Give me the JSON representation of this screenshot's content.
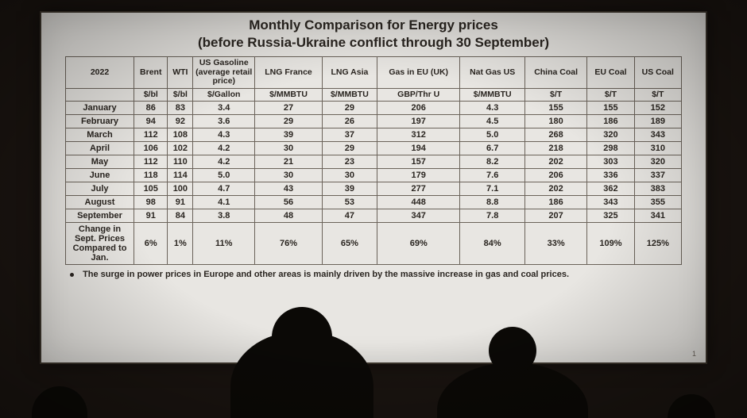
{
  "title_line1": "Monthly Comparison for Energy prices",
  "title_line2": "(before Russia-Ukraine conflict through 30 September)",
  "year_label": "2022",
  "columns": [
    {
      "name": "Brent",
      "unit": "$/bl"
    },
    {
      "name": "WTI",
      "unit": "$/bl"
    },
    {
      "name": "US Gasoline (average retail price)",
      "unit": "$/Gallon"
    },
    {
      "name": "LNG France",
      "unit": "$/MMBTU"
    },
    {
      "name": "LNG Asia",
      "unit": "$/MMBTU"
    },
    {
      "name": "Gas in EU (UK)",
      "unit": "GBP/Thr U"
    },
    {
      "name": "Nat Gas US",
      "unit": "$/MMBTU"
    },
    {
      "name": "China Coal",
      "unit": "$/T"
    },
    {
      "name": "EU Coal",
      "unit": "$/T"
    },
    {
      "name": "US Coal",
      "unit": "$/T"
    }
  ],
  "rows": [
    {
      "label": "January",
      "v": [
        "86",
        "83",
        "3.4",
        "27",
        "29",
        "206",
        "4.3",
        "155",
        "155",
        "152"
      ]
    },
    {
      "label": "February",
      "v": [
        "94",
        "92",
        "3.6",
        "29",
        "26",
        "197",
        "4.5",
        "180",
        "186",
        "189"
      ]
    },
    {
      "label": "March",
      "v": [
        "112",
        "108",
        "4.3",
        "39",
        "37",
        "312",
        "5.0",
        "268",
        "320",
        "343"
      ]
    },
    {
      "label": "April",
      "v": [
        "106",
        "102",
        "4.2",
        "30",
        "29",
        "194",
        "6.7",
        "218",
        "298",
        "310"
      ]
    },
    {
      "label": "May",
      "v": [
        "112",
        "110",
        "4.2",
        "21",
        "23",
        "157",
        "8.2",
        "202",
        "303",
        "320"
      ]
    },
    {
      "label": "June",
      "v": [
        "118",
        "114",
        "5.0",
        "30",
        "30",
        "179",
        "7.6",
        "206",
        "336",
        "337"
      ]
    },
    {
      "label": "July",
      "v": [
        "105",
        "100",
        "4.7",
        "43",
        "39",
        "277",
        "7.1",
        "202",
        "362",
        "383"
      ]
    },
    {
      "label": "August",
      "v": [
        "98",
        "91",
        "4.1",
        "56",
        "53",
        "448",
        "8.8",
        "186",
        "343",
        "355"
      ]
    },
    {
      "label": "September",
      "v": [
        "91",
        "84",
        "3.8",
        "48",
        "47",
        "347",
        "7.8",
        "207",
        "325",
        "341"
      ]
    }
  ],
  "change_row": {
    "label": "Change in Sept. Prices Compared to Jan.",
    "v": [
      "6%",
      "1%",
      "11%",
      "76%",
      "65%",
      "69%",
      "84%",
      "33%",
      "109%",
      "125%"
    ]
  },
  "footnote": "The surge in power prices in Europe and other areas is mainly driven by the massive increase in gas and coal prices.",
  "page_number": "1",
  "colors": {
    "background": "#1a1410",
    "slide_bg": "#e8e6e2",
    "text": "#2a2520",
    "border": "#6b635a"
  },
  "table_style": {
    "font_size_header": 10.5,
    "font_size_body": 11,
    "border_width": 1
  }
}
